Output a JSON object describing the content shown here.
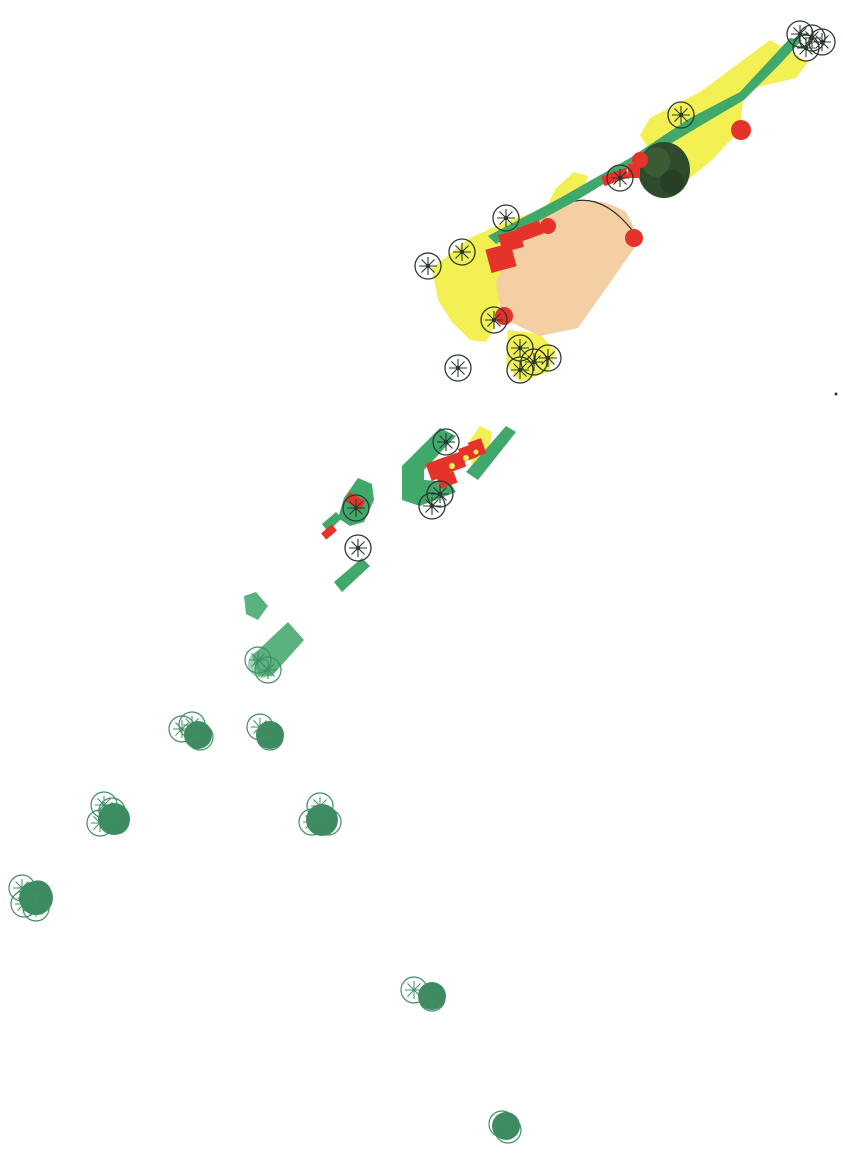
{
  "colors": {
    "planting": "#3fa86a",
    "planting_light": "#5ab27f",
    "lawn": "#f2f052",
    "plaza": "#f3cfa3",
    "feature": "#e6332a",
    "tree_outline_dark": "#2b3a2e",
    "tree_outline_green": "#3c8f62",
    "tree_fill": "#3f8a63",
    "dark_canopy": "#2f4a2c",
    "arc": "#2f2f2f"
  },
  "icons": {
    "tree": "tree-symbol-icon",
    "shrub_cluster": "shrub-cluster-icon",
    "feature_dot": "feature-dot-icon"
  }
}
